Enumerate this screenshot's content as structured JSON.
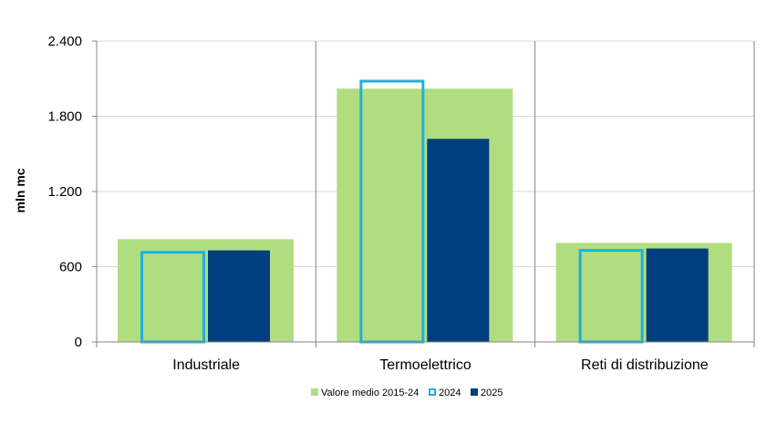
{
  "chart_data": {
    "type": "bar",
    "title": "",
    "xlabel": "",
    "ylabel": "mln mc",
    "ylim": [
      0,
      2400
    ],
    "yticks": [
      0,
      600,
      1200,
      1800,
      2400
    ],
    "ytick_labels": [
      "0",
      "600",
      "1.200",
      "1.800",
      "2.400"
    ],
    "categories": [
      "Industriale",
      "Termoelettrico",
      "Reti di distribuzione"
    ],
    "series": [
      {
        "name": "Valore medio 2015-24",
        "values": [
          820,
          2020,
          790
        ],
        "color": "#b1dd81",
        "style": "filled-wide"
      },
      {
        "name": "2024",
        "values": [
          715,
          2080,
          730
        ],
        "color": "#1fb1da",
        "style": "outline"
      },
      {
        "name": "2025",
        "values": [
          730,
          1620,
          745
        ],
        "color": "#003f7f",
        "style": "filled"
      }
    ],
    "grid": true,
    "legend_position": "bottom"
  }
}
